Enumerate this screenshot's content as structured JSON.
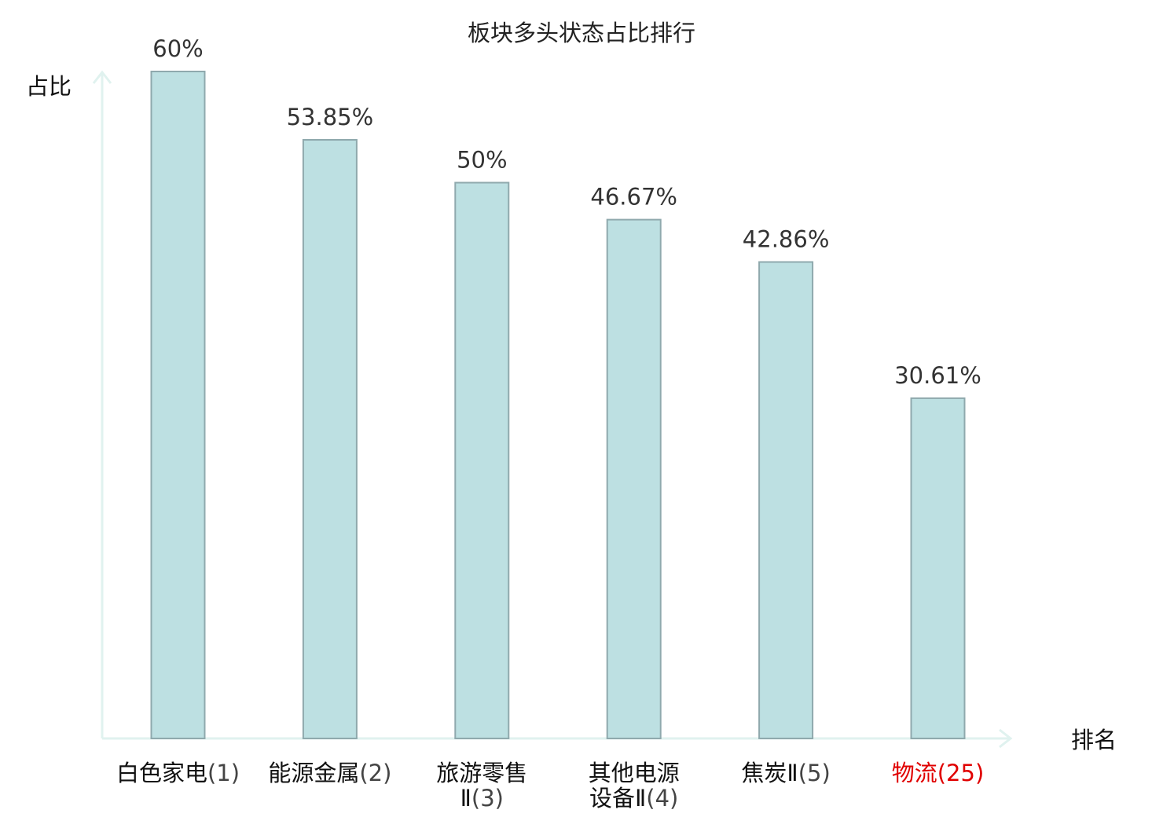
{
  "chart_data": {
    "type": "bar",
    "title": "板块多头状态占比排行",
    "xlabel": "排名",
    "ylabel": "占比",
    "ylim": [
      0,
      60
    ],
    "categories": [
      {
        "name_lines": [
          "白色家电"
        ],
        "rank": "(1)",
        "highlight": false
      },
      {
        "name_lines": [
          "能源金属"
        ],
        "rank": "(2)",
        "highlight": false
      },
      {
        "name_lines": [
          "旅游零售",
          "Ⅱ"
        ],
        "rank": "(3)",
        "highlight": false
      },
      {
        "name_lines": [
          "其他电源",
          "设备Ⅱ"
        ],
        "rank": "(4)",
        "highlight": false
      },
      {
        "name_lines": [
          "焦炭Ⅱ"
        ],
        "rank": "(5)",
        "highlight": false
      },
      {
        "name_lines": [
          "物流"
        ],
        "rank": "(25)",
        "highlight": true
      }
    ],
    "values": [
      60,
      53.85,
      50,
      46.67,
      42.86,
      30.61
    ],
    "value_labels": [
      "60%",
      "53.85%",
      "50%",
      "46.67%",
      "42.86%",
      "30.61%"
    ],
    "grid": false,
    "legend": "none",
    "colors": {
      "bar_fill": "#bde0e2",
      "bar_stroke": "#8fa9ad",
      "axis": "#e0f2ef",
      "highlight_label": "#e00000",
      "normal_label": "#111111",
      "value_label": "#333333"
    }
  }
}
